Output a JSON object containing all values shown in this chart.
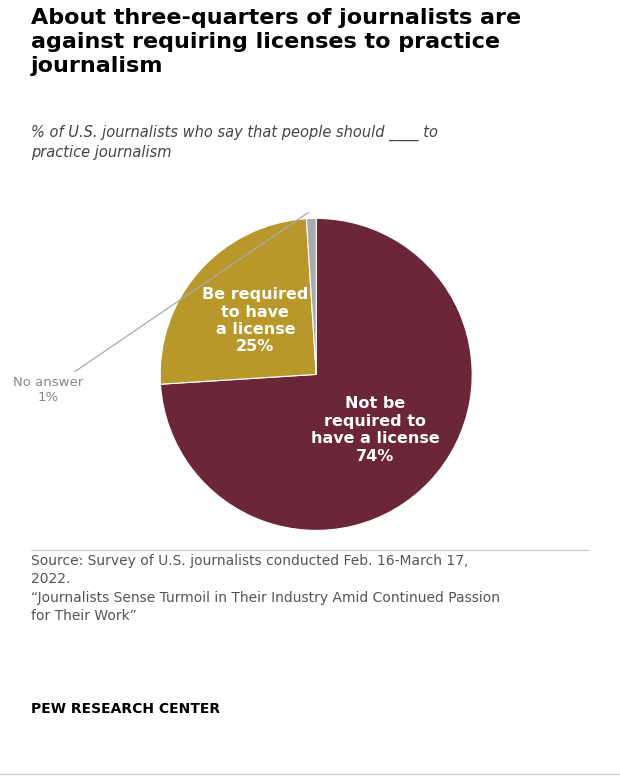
{
  "title": "About three-quarters of journalists are\nagainst requiring licenses to practice\njournalism",
  "subtitle": "% of U.S. journalists who say that people should ____ to\npractice journalism",
  "slices": [
    74,
    25,
    1
  ],
  "colors": [
    "#6b2737",
    "#b8982a",
    "#aaaaaa"
  ],
  "label_74": "Not be\nrequired to\nhave a license\n74%",
  "label_25": "Be required\nto have\na license\n25%",
  "label_1": "No answer\n1%",
  "source_text": "Source: Survey of U.S. journalists conducted Feb. 16-March 17,\n2022.\n“Journalists Sense Turmoil in Their Industry Amid Continued Passion\nfor Their Work”",
  "footer": "PEW RESEARCH CENTER",
  "bg_color": "#ffffff",
  "title_fontsize": 16,
  "subtitle_fontsize": 10.5,
  "label_fontsize": 11.5,
  "source_fontsize": 10,
  "footer_fontsize": 10
}
